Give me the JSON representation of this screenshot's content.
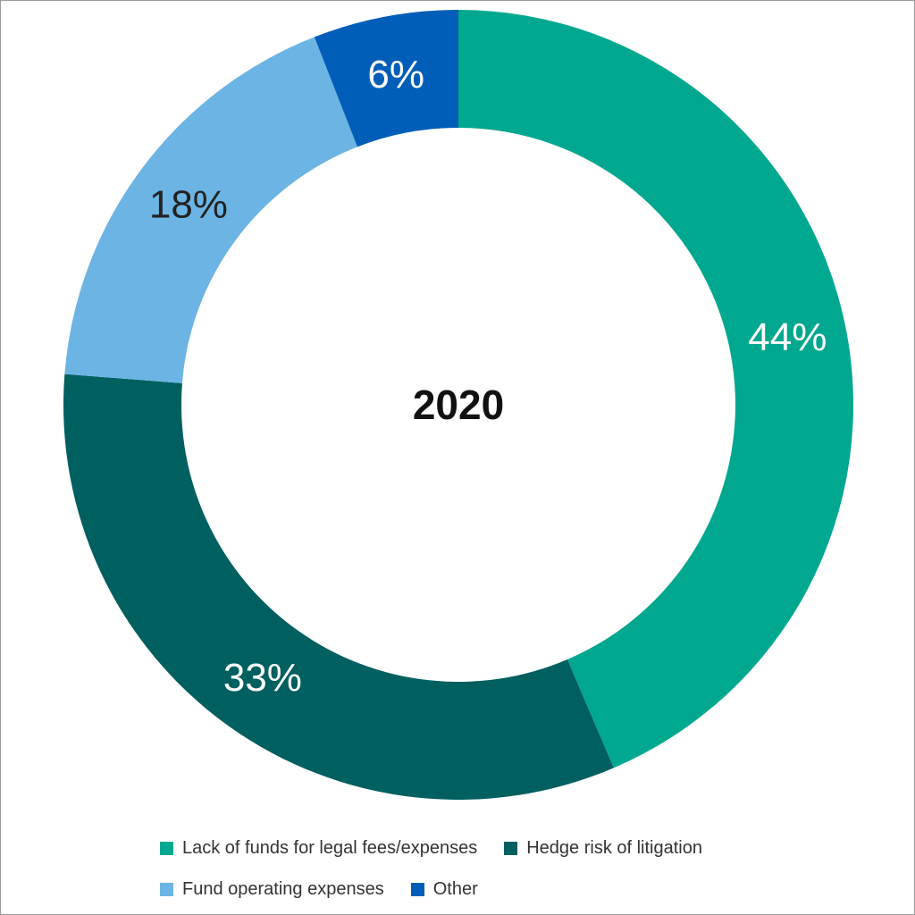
{
  "chart_data": {
    "type": "donut",
    "title": "2020",
    "categories": [
      "Lack of funds for legal fees/expenses",
      "Hedge risk of litigation",
      "Fund operating expenses",
      "Other"
    ],
    "values": [
      44,
      33,
      18,
      6
    ],
    "value_labels": [
      "44%",
      "33%",
      "18%",
      "6%"
    ],
    "colors": [
      "#00a88f",
      "#005f5f",
      "#6cb4e4",
      "#005eb8"
    ]
  }
}
